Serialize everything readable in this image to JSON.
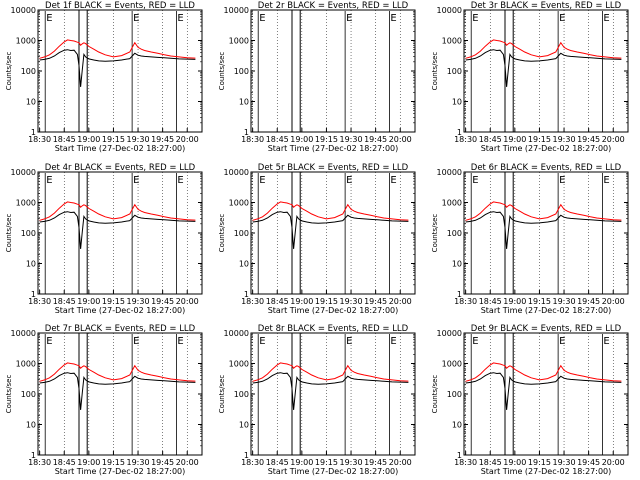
{
  "chart_data": {
    "type": "line",
    "x_ticks": [
      "18:30",
      "18:45",
      "19:00",
      "19:15",
      "19:30",
      "19:45",
      "20:00"
    ],
    "x_tick_minutes": [
      0,
      15,
      30,
      45,
      60,
      75,
      90
    ],
    "x_range_minutes": [
      -1,
      99
    ],
    "y_ticks": [
      "1",
      "10",
      "100",
      "1000",
      "10000"
    ],
    "y_tick_values": [
      1,
      10,
      100,
      1000,
      10000
    ],
    "y_range": [
      1,
      10000
    ],
    "y_scale": "log",
    "ylabel": "Counts/sec",
    "xlabel": "Start Time (27-Dec-02 18:27:00)",
    "series_names": [
      "Events",
      "LLD"
    ],
    "series_colors": [
      "#000000",
      "#ff0000"
    ],
    "event_marker_letter": "E",
    "time_grid_minutes": [
      0,
      15,
      30,
      45,
      60,
      75,
      90
    ],
    "events_curve": {
      "x": [
        0,
        3,
        6,
        9,
        12,
        15,
        17,
        19,
        21,
        23,
        24,
        25,
        26,
        27,
        28,
        30,
        33,
        36,
        40,
        45,
        50,
        55,
        58,
        60,
        62,
        64,
        68,
        72,
        76,
        80,
        85,
        90,
        95
      ],
      "y": [
        230,
        240,
        260,
        310,
        400,
        480,
        500,
        470,
        480,
        350,
        150,
        30,
        110,
        350,
        290,
        250,
        230,
        215,
        210,
        215,
        230,
        255,
        380,
        330,
        310,
        300,
        290,
        280,
        270,
        260,
        250,
        245,
        240
      ]
    },
    "lld_curve": {
      "x": [
        0,
        3,
        6,
        9,
        12,
        15,
        17,
        19,
        21,
        23,
        24,
        25,
        26,
        27,
        28,
        30,
        33,
        36,
        40,
        45,
        50,
        55,
        58,
        60,
        62,
        64,
        68,
        72,
        76,
        80,
        85,
        90,
        95
      ],
      "y": [
        260,
        290,
        340,
        450,
        650,
        900,
        1050,
        1000,
        960,
        880,
        850,
        700,
        780,
        840,
        790,
        640,
        520,
        420,
        340,
        290,
        320,
        420,
        850,
        600,
        520,
        470,
        420,
        380,
        340,
        310,
        290,
        270,
        265
      ]
    },
    "panels": [
      {
        "title": "Det 1f BLACK = Events, RED = LLD",
        "has_data": true,
        "gap_minutes": [
          24,
          29
        ],
        "event_marks": [
          4,
          57,
          84
        ]
      },
      {
        "title": "Det 2r BLACK = Events, RED = LLD",
        "has_data": false,
        "gap_minutes": [
          24,
          29
        ],
        "event_marks": [
          4,
          57,
          84
        ]
      },
      {
        "title": "Det 3r BLACK = Events, RED = LLD",
        "has_data": true,
        "gap_minutes": [
          24,
          29
        ],
        "event_marks": [
          4,
          57,
          84
        ]
      },
      {
        "title": "Det 4r BLACK = Events, RED = LLD",
        "has_data": true,
        "gap_minutes": [
          24,
          29
        ],
        "event_marks": [
          4,
          57,
          84
        ]
      },
      {
        "title": "Det 5r BLACK = Events, RED = LLD",
        "has_data": true,
        "gap_minutes": [
          24,
          29
        ],
        "event_marks": [
          4,
          57,
          84
        ]
      },
      {
        "title": "Det 6r BLACK = Events, RED = LLD",
        "has_data": true,
        "gap_minutes": [
          24,
          29
        ],
        "event_marks": [
          4,
          57,
          84
        ]
      },
      {
        "title": "Det 7r BLACK = Events, RED = LLD",
        "has_data": true,
        "gap_minutes": [
          24,
          29
        ],
        "event_marks": [
          4,
          57,
          84
        ]
      },
      {
        "title": "Det 8r BLACK = Events, RED = LLD",
        "has_data": true,
        "gap_minutes": [
          24,
          29
        ],
        "event_marks": [
          4,
          57,
          84
        ]
      },
      {
        "title": "Det 9r BLACK = Events, RED = LLD",
        "has_data": true,
        "gap_minutes": [
          24,
          29
        ],
        "event_marks": [
          4,
          57,
          84
        ]
      }
    ]
  }
}
